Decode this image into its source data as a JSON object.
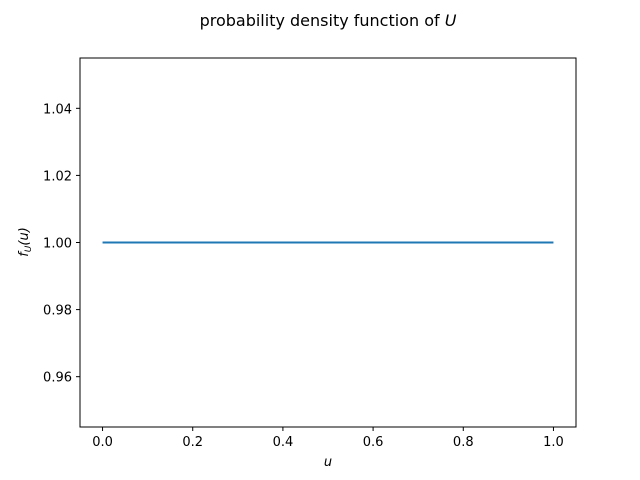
{
  "chart_data": {
    "type": "line",
    "title": "probability density function of U",
    "title_prefix": "probability density function of ",
    "title_math": "U",
    "xlabel": "u",
    "ylabel": "f_U(u)",
    "ylabel_main": "f",
    "ylabel_sub": "U",
    "ylabel_arg": "(u)",
    "xlim": [
      -0.05,
      1.05
    ],
    "ylim": [
      0.945,
      1.055
    ],
    "x_ticks": [
      0.0,
      0.2,
      0.4,
      0.6,
      0.8,
      1.0
    ],
    "x_tick_labels": [
      "0.0",
      "0.2",
      "0.4",
      "0.6",
      "0.8",
      "1.0"
    ],
    "y_ticks": [
      0.96,
      0.98,
      1.0,
      1.02,
      1.04
    ],
    "y_tick_labels": [
      "0.96",
      "0.98",
      "1.00",
      "1.02",
      "1.04"
    ],
    "grid": false,
    "series": [
      {
        "x": [
          0.0,
          1.0
        ],
        "y": [
          1.0,
          1.0
        ],
        "color": "#1f77b4"
      }
    ]
  }
}
